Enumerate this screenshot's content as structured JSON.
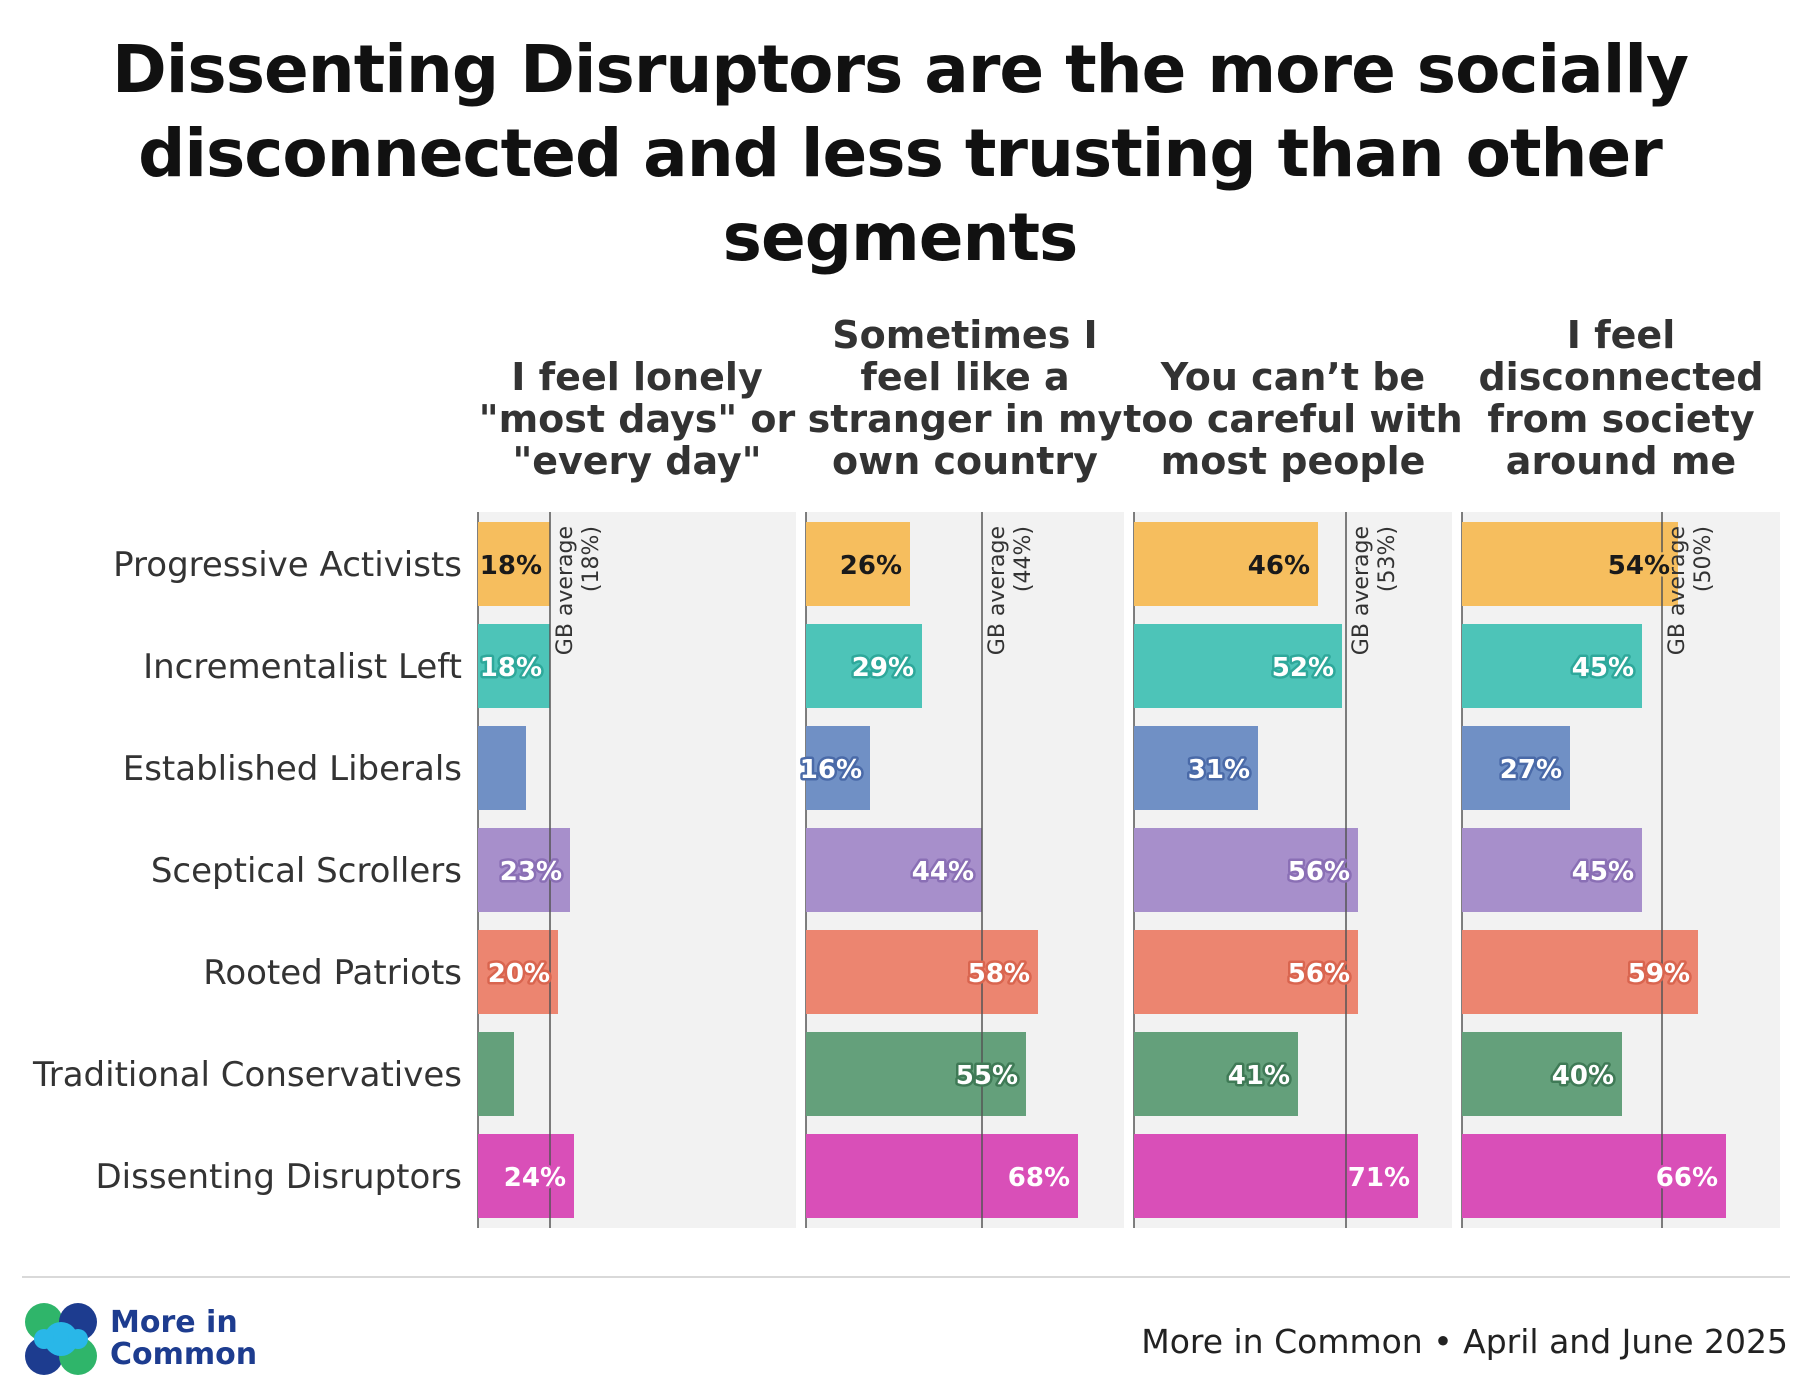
{
  "title": "Dissenting Disruptors are the more socially disconnected and less trusting than other segments",
  "chart_data": {
    "type": "bar",
    "orientation": "horizontal",
    "categories": [
      "Progressive Activists",
      "Incrementalist Left",
      "Established Liberals",
      "Sceptical Scrollers",
      "Rooted Patriots",
      "Traditional Conservatives",
      "Dissenting Disruptors"
    ],
    "colors": [
      "#f6be5e",
      "#4dc4b8",
      "#7090c5",
      "#a78fcb",
      "#ec8570",
      "#64a07b",
      "#d94fb8"
    ],
    "label_text_colors": [
      "#1a1a1a",
      "#ffffff",
      "#ffffff",
      "#ffffff",
      "#ffffff",
      "#ffffff",
      "#ffffff"
    ],
    "label_outline_colors": [
      "#f6be5e",
      "#2ea89b",
      "#4a6aa8",
      "#8a6fb5",
      "#d9654f",
      "#3f7a56",
      "#d94fb8"
    ],
    "panels": [
      {
        "title_lines": [
          "I feel lonely",
          "\"most days\" or",
          "\"every day\""
        ],
        "values": [
          18,
          18,
          12,
          23,
          20,
          9,
          24
        ],
        "labels": [
          "18%",
          "18%",
          "",
          "23%",
          "20%",
          "",
          "24%"
        ],
        "average": 18,
        "average_label": [
          "GB average",
          "(18%)"
        ]
      },
      {
        "title_lines": [
          "Sometimes I",
          "feel like a",
          "stranger in my",
          "own country"
        ],
        "values": [
          26,
          29,
          16,
          44,
          58,
          55,
          68
        ],
        "labels": [
          "26%",
          "29%",
          "16%",
          "44%",
          "58%",
          "55%",
          "68%"
        ],
        "average": 44,
        "average_label": [
          "GB average",
          "(44%)"
        ]
      },
      {
        "title_lines": [
          "You can’t be",
          "too careful with",
          "most people"
        ],
        "values": [
          46,
          52,
          31,
          56,
          56,
          41,
          71
        ],
        "labels": [
          "46%",
          "52%",
          "31%",
          "56%",
          "56%",
          "41%",
          "71%"
        ],
        "average": 53,
        "average_label": [
          "GB average",
          "(53%)"
        ]
      },
      {
        "title_lines": [
          "I feel",
          "disconnected",
          "from society",
          "around me"
        ],
        "values": [
          54,
          45,
          27,
          45,
          59,
          40,
          66
        ],
        "labels": [
          "54%",
          "45%",
          "27%",
          "45%",
          "59%",
          "40%",
          "66%"
        ],
        "average": 50,
        "average_label": [
          "GB average",
          "(50%)"
        ]
      }
    ]
  },
  "logo": {
    "line1": "More in",
    "line2": "Common"
  },
  "source": "More in Common • April and June 2025"
}
